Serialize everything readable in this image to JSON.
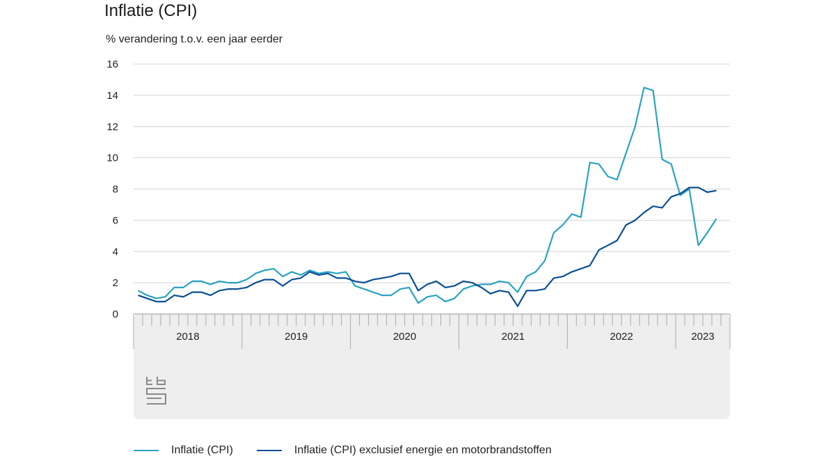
{
  "chart_data": {
    "type": "line",
    "title": "Inflatie (CPI)",
    "ylabel": "% verandering t.o.v. een jaar eerder",
    "ylim": [
      0,
      16
    ],
    "yticks": [
      0,
      2,
      4,
      6,
      8,
      10,
      12,
      14,
      16
    ],
    "x_start": "2018-01",
    "x_end": "2023-06",
    "year_labels": [
      "2018",
      "2019",
      "2020",
      "2021",
      "2022",
      "2023"
    ],
    "grid": true,
    "legend_position": "bottom",
    "series": [
      {
        "name": "Inflatie (CPI)",
        "color": "#29a3c2",
        "values": [
          1.5,
          1.2,
          1.0,
          1.1,
          1.7,
          1.7,
          2.1,
          2.1,
          1.9,
          2.1,
          2.0,
          2.0,
          2.2,
          2.6,
          2.8,
          2.9,
          2.4,
          2.7,
          2.5,
          2.8,
          2.6,
          2.7,
          2.6,
          2.7,
          1.8,
          1.6,
          1.4,
          1.2,
          1.2,
          1.6,
          1.7,
          0.7,
          1.1,
          1.2,
          0.8,
          1.0,
          1.6,
          1.8,
          1.9,
          1.9,
          2.1,
          2.0,
          1.4,
          2.4,
          2.7,
          3.4,
          5.2,
          5.7,
          6.4,
          6.2,
          9.7,
          9.6,
          8.8,
          8.6,
          10.3,
          12.0,
          14.5,
          14.3,
          9.9,
          9.6,
          7.6,
          8.0,
          4.4,
          5.2,
          6.1
        ]
      },
      {
        "name": "Inflatie (CPI) exclusief energie en motorbrandstoffen",
        "color": "#0b4f94",
        "values": [
          1.2,
          1.0,
          0.8,
          0.8,
          1.2,
          1.1,
          1.4,
          1.4,
          1.2,
          1.5,
          1.6,
          1.6,
          1.7,
          2.0,
          2.2,
          2.2,
          1.8,
          2.2,
          2.3,
          2.7,
          2.5,
          2.6,
          2.3,
          2.3,
          2.1,
          2.0,
          2.2,
          2.3,
          2.4,
          2.6,
          2.6,
          1.5,
          1.9,
          2.1,
          1.7,
          1.8,
          2.1,
          2.0,
          1.7,
          1.3,
          1.5,
          1.4,
          0.5,
          1.5,
          1.5,
          1.6,
          2.3,
          2.4,
          2.7,
          2.9,
          3.1,
          4.1,
          4.4,
          4.7,
          5.7,
          6.0,
          6.5,
          6.9,
          6.8,
          7.5,
          7.7,
          8.1,
          8.1,
          7.8,
          7.9
        ]
      }
    ]
  }
}
